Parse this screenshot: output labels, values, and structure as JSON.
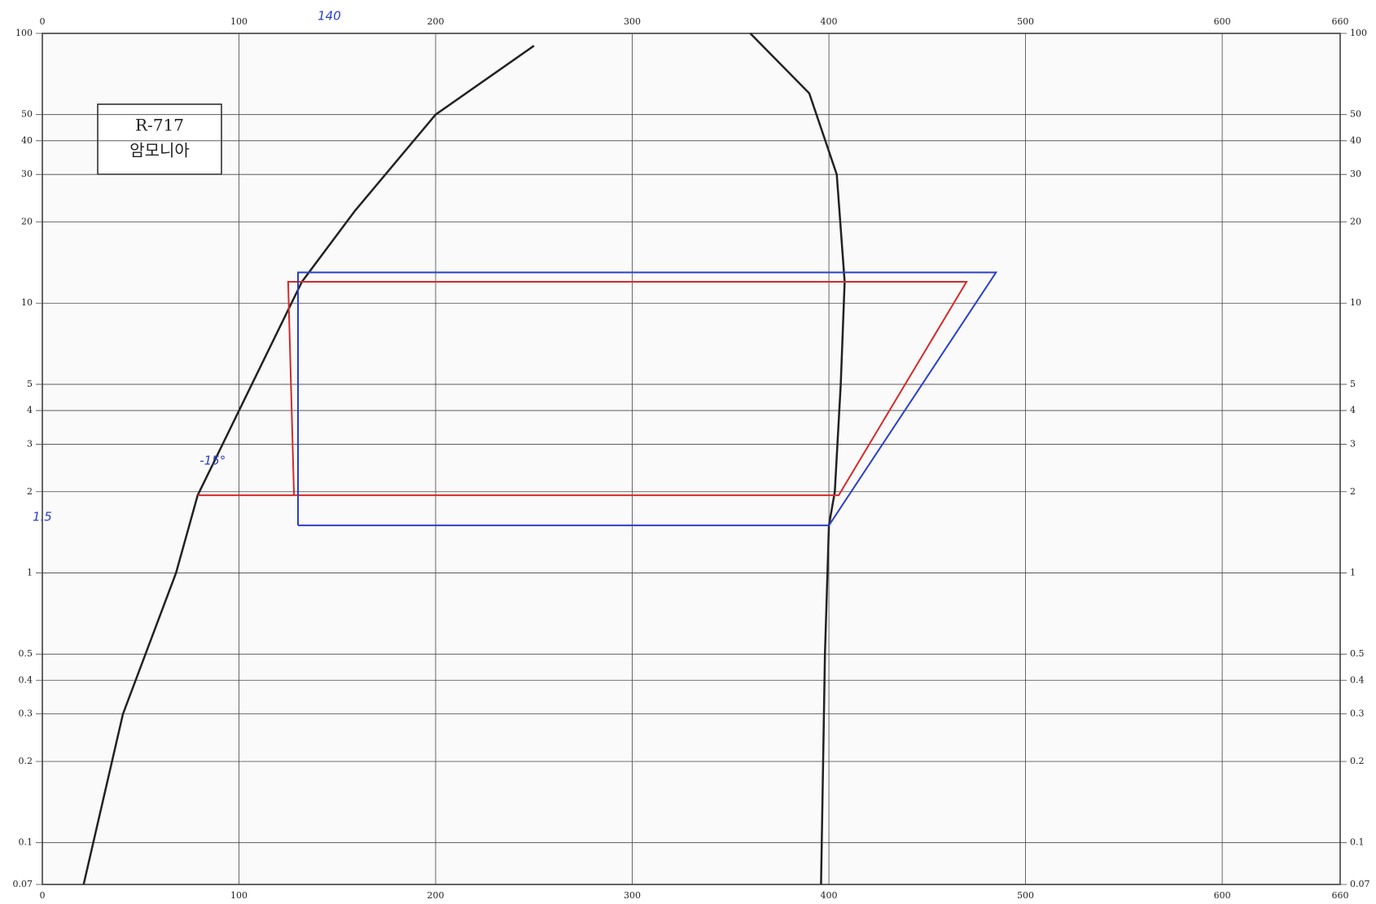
{
  "chart_data": {
    "type": "line",
    "title": "R-717",
    "subtitle": "암모니아",
    "yscale": "log",
    "grid": true,
    "xlim": [
      0,
      660
    ],
    "xticks": [
      0,
      100,
      200,
      300,
      400,
      500,
      600,
      660
    ],
    "ylim": [
      0.07,
      100
    ],
    "yticks": [
      0.07,
      0.1,
      0.2,
      0.3,
      0.4,
      0.5,
      1,
      2,
      3,
      4,
      5,
      10,
      20,
      30,
      40,
      50,
      100
    ],
    "series": [
      {
        "color": "#222222",
        "x": [
          21,
          41,
          68,
          79,
          132,
          159,
          200,
          250
        ],
        "values": [
          0.07,
          0.3,
          1,
          1.94,
          12,
          22,
          50,
          90
        ]
      },
      {
        "color": "#222222",
        "x": [
          396,
          398,
          400,
          403,
          406,
          408,
          404,
          390,
          360
        ],
        "values": [
          0.07,
          0.5,
          1.5,
          2,
          5,
          12,
          30,
          60,
          100
        ]
      },
      {
        "color": "#d42a2a",
        "x": [
          79,
          405,
          470,
          125,
          128,
          79
        ],
        "values": [
          1.94,
          1.94,
          12,
          12,
          1.94,
          1.94
        ]
      },
      {
        "color": "#2a3fc8",
        "x": [
          130,
          400,
          485,
          130,
          130
        ],
        "values": [
          1.5,
          1.5,
          13,
          13,
          1.5
        ]
      }
    ],
    "annotations": [
      "1.5",
      "140",
      "-15°"
    ]
  }
}
